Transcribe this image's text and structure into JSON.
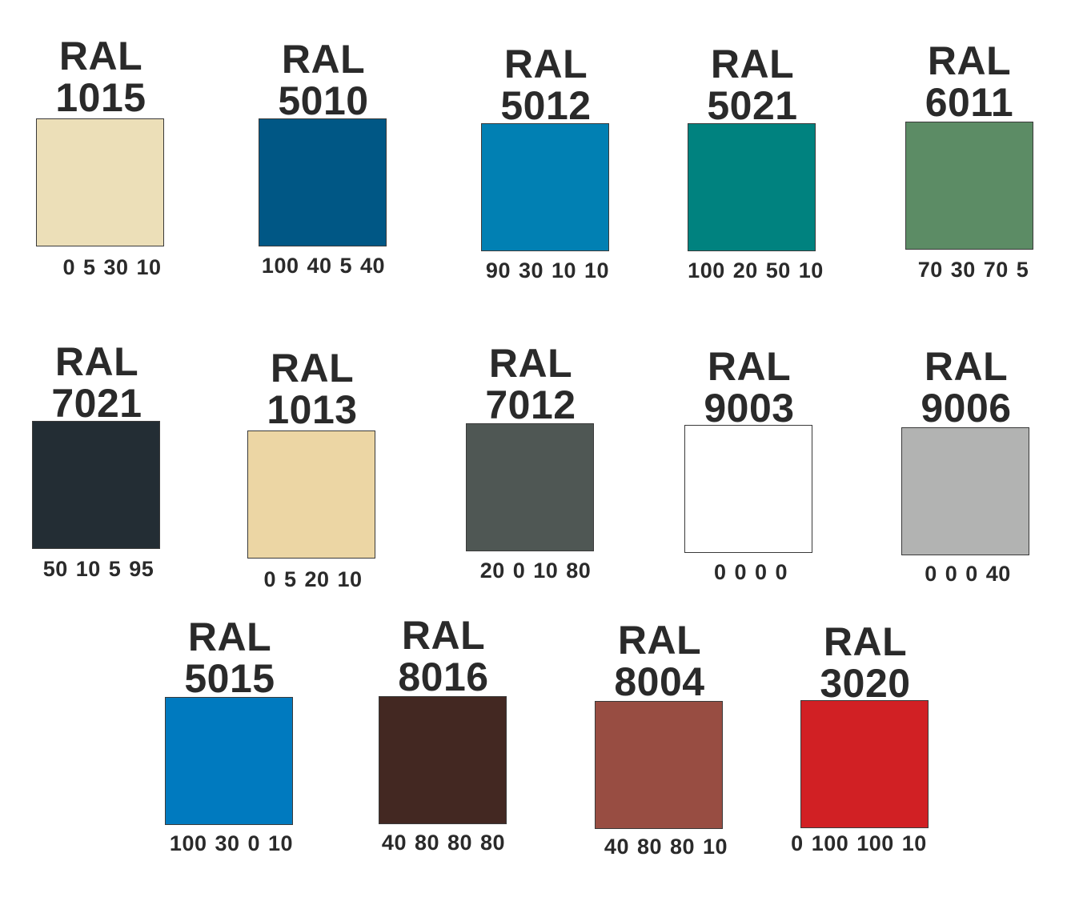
{
  "swatches": [
    {
      "prefix": "RAL",
      "code": "1015",
      "cmyk": "0 5 30 10",
      "color": "#ECDFB8"
    },
    {
      "prefix": "RAL",
      "code": "5010",
      "cmyk": "100 40 5 40",
      "color": "#005785"
    },
    {
      "prefix": "RAL",
      "code": "5012",
      "cmyk": "90 30 10 10",
      "color": "#0180B3"
    },
    {
      "prefix": "RAL",
      "code": "5021",
      "cmyk": "100 20 50 10",
      "color": "#00827F"
    },
    {
      "prefix": "RAL",
      "code": "6011",
      "cmyk": "70 30 70 5",
      "color": "#5C8C65"
    },
    {
      "prefix": "RAL",
      "code": "7021",
      "cmyk": "50 10 5 95",
      "color": "#232D34"
    },
    {
      "prefix": "RAL",
      "code": "1013",
      "cmyk": "0 5 20 10",
      "color": "#ECD6A4"
    },
    {
      "prefix": "RAL",
      "code": "7012",
      "cmyk": "20 0 10 80",
      "color": "#4F5754"
    },
    {
      "prefix": "RAL",
      "code": "9003",
      "cmyk": "0 0 0 0",
      "color": "#FFFFFF"
    },
    {
      "prefix": "RAL",
      "code": "9006",
      "cmyk": "0 0 0 40",
      "color": "#B2B3B2"
    },
    {
      "prefix": "RAL",
      "code": "5015",
      "cmyk": "100 30 0 10",
      "color": "#007ABF"
    },
    {
      "prefix": "RAL",
      "code": "8016",
      "cmyk": "40 80 80 80",
      "color": "#432822"
    },
    {
      "prefix": "RAL",
      "code": "8004",
      "cmyk": "40 80 80 10",
      "color": "#984D42"
    },
    {
      "prefix": "RAL",
      "code": "3020",
      "cmyk": "0 100 100 10",
      "color": "#D12024"
    }
  ]
}
